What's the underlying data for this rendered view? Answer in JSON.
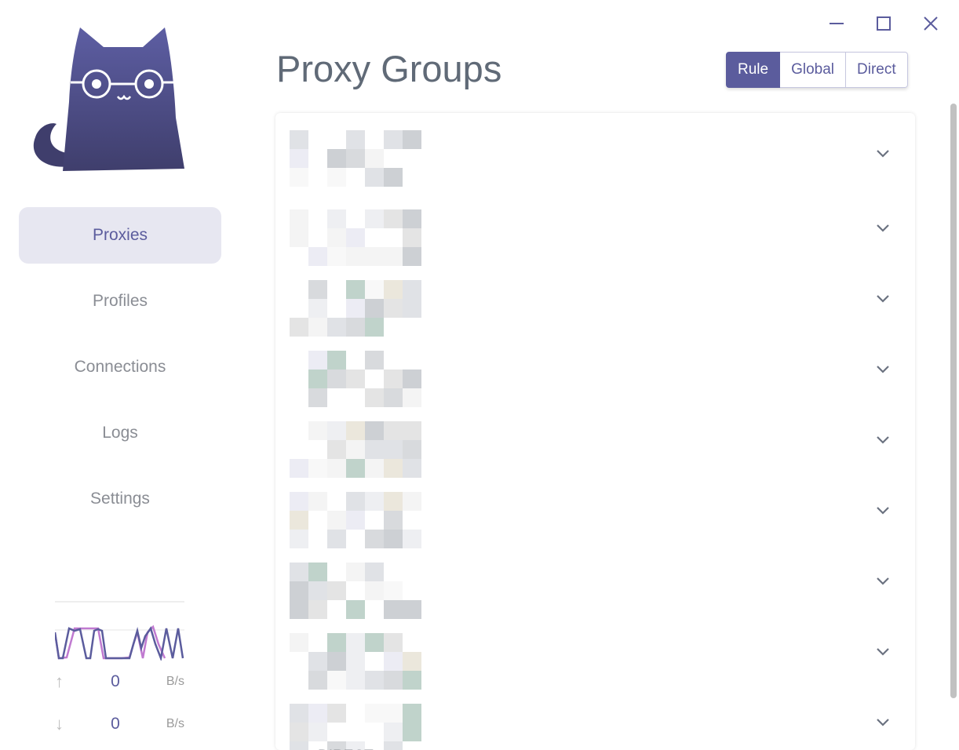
{
  "window": {
    "controls": [
      {
        "name": "minimize-icon"
      },
      {
        "name": "maximize-icon"
      },
      {
        "name": "close-icon"
      }
    ]
  },
  "sidebar": {
    "items": [
      {
        "label": "Proxies",
        "active": true
      },
      {
        "label": "Profiles"
      },
      {
        "label": "Connections"
      },
      {
        "label": "Logs"
      },
      {
        "label": "Settings"
      }
    ]
  },
  "traffic": {
    "upload": {
      "value": "0",
      "unit": "B/s"
    },
    "download": {
      "value": "0",
      "unit": "B/s"
    }
  },
  "header": {
    "title": "Proxy Groups",
    "modes": [
      "Rule",
      "Global",
      "Direct"
    ],
    "active_mode": "Rule"
  },
  "groups": {
    "count": 9,
    "last_selected": "DIRECT"
  },
  "colors": {
    "accent": "#5b5c9d",
    "upload_line": "#c07ad0",
    "download_line": "#5b5c9d"
  }
}
